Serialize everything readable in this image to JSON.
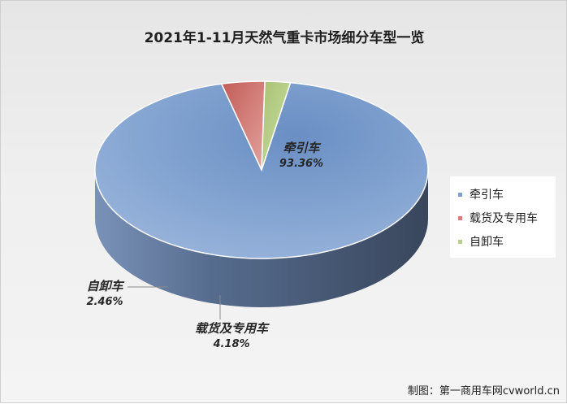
{
  "title": "2021年1-11月天然气重卡市场细分车型一览",
  "credit": "制图：第一商用车网cvworld.cn",
  "chart_data": {
    "type": "pie",
    "title": "2021年1-11月天然气重卡市场细分车型一览",
    "labels": [
      "牵引车",
      "载货及专用车",
      "自卸车"
    ],
    "values": [
      93.36,
      4.18,
      2.46
    ],
    "value_labels": [
      "93.36%",
      "4.18%",
      "2.46%"
    ],
    "colors": [
      "#7f9fcc",
      "#d47f7b",
      "#b8cf8b"
    ],
    "legend_position": "right",
    "style": "3d"
  }
}
